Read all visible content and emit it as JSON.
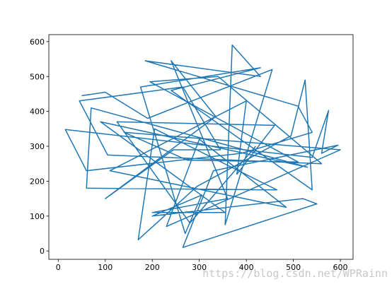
{
  "chart_data": {
    "type": "line",
    "color": "#1f77b4",
    "x": [
      50,
      100,
      190,
      455,
      355,
      370,
      430,
      185,
      510,
      540,
      390,
      60,
      15,
      540,
      575,
      560,
      595,
      330,
      265,
      550,
      520,
      200,
      305,
      270,
      175,
      430,
      240,
      540,
      525,
      495,
      295,
      170,
      205,
      465,
      60,
      70,
      530,
      90,
      355,
      200,
      360,
      240,
      335,
      100,
      245,
      345,
      265,
      45,
      105,
      560,
      340,
      195,
      510,
      275,
      140,
      600,
      230,
      300,
      485,
      110,
      400,
      380,
      460,
      125,
      280,
      420
    ],
    "values": [
      445,
      455,
      380,
      520,
      75,
      590,
      500,
      545,
      415,
      340,
      280,
      230,
      348,
      268,
      403,
      280,
      303,
      230,
      10,
      135,
      150,
      100,
      160,
      50,
      470,
      525,
      460,
      175,
      490,
      330,
      185,
      32,
      350,
      175,
      180,
      410,
      240,
      370,
      110,
      110,
      150,
      545,
      385,
      150,
      290,
      290,
      470,
      430,
      275,
      250,
      500,
      485,
      255,
      260,
      340,
      290,
      70,
      320,
      125,
      230,
      430,
      220,
      360,
      370,
      80,
      300
    ],
    "xlim": [
      -20,
      627
    ],
    "ylim": [
      -24,
      620
    ],
    "xticks": [
      0,
      100,
      200,
      300,
      400,
      500,
      600
    ],
    "yticks": [
      0,
      100,
      200,
      300,
      400,
      500,
      600
    ],
    "watermark": "https://blog.csdn.net/WPRainn"
  }
}
